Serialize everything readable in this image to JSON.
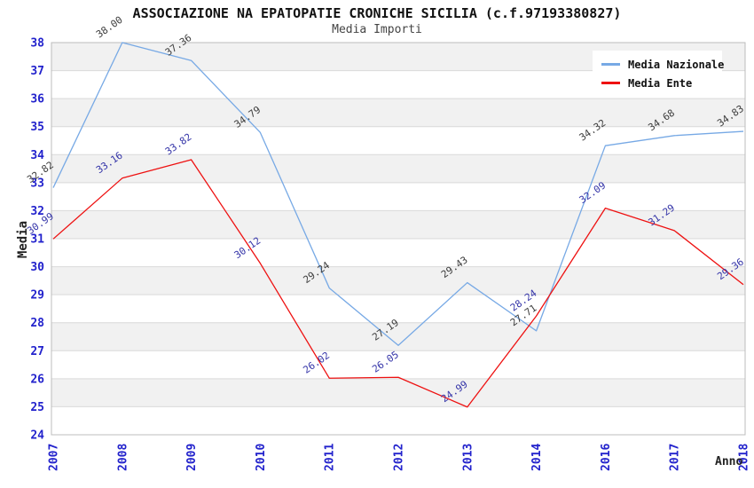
{
  "chart_data": {
    "type": "line",
    "title": "ASSOCIAZIONE NA EPATOPATIE CRONICHE SICILIA (c.f.97193380827)",
    "subtitle": "Media Importi",
    "xlabel": "Anno",
    "ylabel": "Media",
    "categories": [
      "2007",
      "2008",
      "2009",
      "2010",
      "2011",
      "2012",
      "2013",
      "2014",
      "2016",
      "2017",
      "2018"
    ],
    "series": [
      {
        "name": "Media Nazionale",
        "color": "#77a9e5",
        "label_color": "#3c3c3c",
        "values": [
          32.82,
          38.0,
          37.36,
          34.79,
          29.24,
          27.19,
          29.43,
          27.71,
          34.32,
          34.68,
          34.83
        ]
      },
      {
        "name": "Media Ente",
        "color": "#ee1111",
        "label_color": "#3434a8",
        "values": [
          30.99,
          33.16,
          33.82,
          30.12,
          26.02,
          26.05,
          24.99,
          28.24,
          32.09,
          31.29,
          29.36
        ]
      }
    ],
    "ylim": [
      24,
      38
    ],
    "y_tick_step": 1,
    "grid": "horizontal, zebra striped bands",
    "legend_position": "top-right",
    "value_labels": "each point labeled with 2-decimal value, rotated",
    "style": {
      "band_fill": "#f1f1f1",
      "grid_color": "#d9d9d9",
      "frame_color": "#bcbcbc",
      "axis_label_color": "#2222cc"
    }
  }
}
